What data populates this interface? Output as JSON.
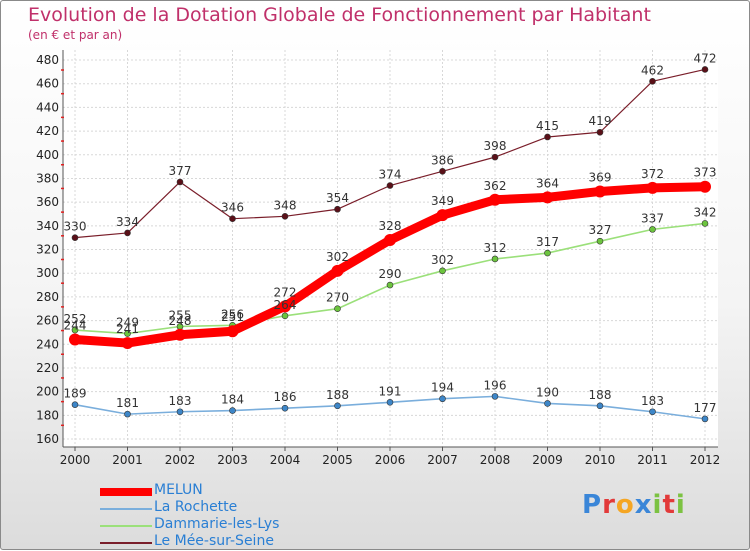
{
  "title": "Evolution de la Dotation Globale de Fonctionnement par Habitant",
  "subtitle": "(en € et par an)",
  "brand": {
    "letters": [
      "P",
      "r",
      "o",
      "x",
      "i",
      "t",
      "i"
    ],
    "colors": [
      "#3a86d8",
      "#e23a3a",
      "#f5a623",
      "#3a86d8",
      "#7cc242",
      "#e23a3a",
      "#7cc242"
    ]
  },
  "chart_data": {
    "type": "line",
    "title": "Evolution de la Dotation Globale de Fonctionnement par Habitant",
    "subtitle": "(en € et par an)",
    "x": [
      "2000",
      "2001",
      "2002",
      "2003",
      "2004",
      "2005",
      "2006",
      "2007",
      "2008",
      "2009",
      "2010",
      "2011",
      "2012"
    ],
    "ylim": [
      160,
      480
    ],
    "yticks": [
      160,
      180,
      200,
      220,
      240,
      260,
      280,
      300,
      320,
      340,
      360,
      380,
      400,
      420,
      440,
      460,
      480
    ],
    "grid": true,
    "legend_position": "bottom-left",
    "series": [
      {
        "name": "Le Mée-sur-Seine",
        "color": "#7a1e2a",
        "point_color": "#5a1018",
        "width": 1.2,
        "values": [
          330,
          334,
          377,
          346,
          348,
          354,
          374,
          386,
          398,
          415,
          419,
          462,
          472
        ]
      },
      {
        "name": "Dammarie-les-Lys",
        "color": "#9be07a",
        "point_color": "#6cc43e",
        "width": 1.6,
        "values": [
          252,
          249,
          255,
          256,
          264,
          270,
          290,
          302,
          312,
          317,
          327,
          337,
          342
        ]
      },
      {
        "name": "La Rochette",
        "color": "#7aaedc",
        "point_color": "#3d86c8",
        "width": 1.6,
        "values": [
          189,
          181,
          183,
          184,
          186,
          188,
          191,
          194,
          196,
          190,
          188,
          183,
          177
        ]
      },
      {
        "name": "MELUN",
        "color": "#ff0000",
        "point_color": "#ff0000",
        "width": 9,
        "values": [
          244,
          241,
          248,
          251,
          272,
          302,
          328,
          349,
          362,
          364,
          369,
          372,
          373
        ]
      }
    ],
    "legend": [
      "MELUN",
      "La Rochette",
      "Dammarie-les-Lys",
      "Le Mée-sur-Seine"
    ]
  }
}
